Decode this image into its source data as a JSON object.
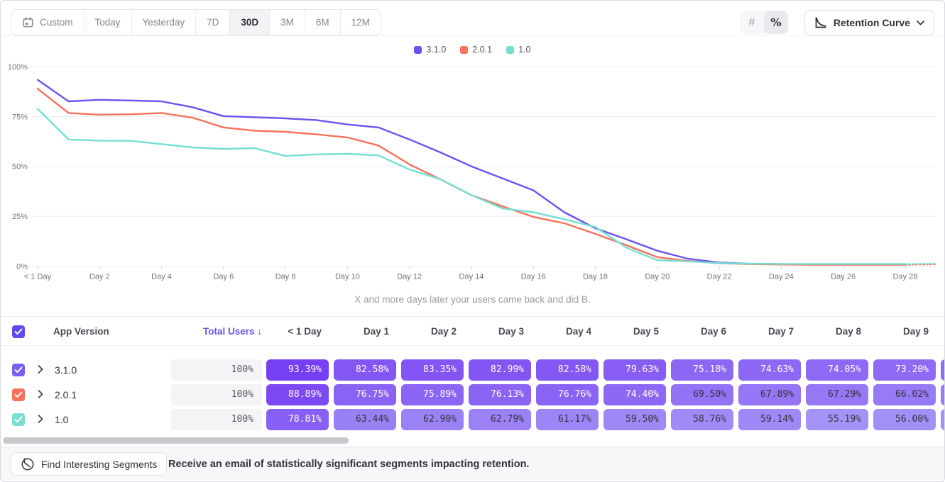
{
  "toolbar": {
    "date_ranges": [
      "Custom",
      "Today",
      "Yesterday",
      "7D",
      "30D",
      "3M",
      "6M",
      "12M"
    ],
    "active_range": "30D",
    "value_toggles": [
      "#",
      "%"
    ],
    "active_toggle": "%",
    "chart_type_label": "Retention Curve"
  },
  "legend": [
    {
      "label": "3.1.0",
      "color": "#6d53f2"
    },
    {
      "label": "2.0.1",
      "color": "#f8715a"
    },
    {
      "label": "1.0",
      "color": "#74dfd1"
    }
  ],
  "chart_data": {
    "type": "line",
    "caption": "X and more days later your users came back and did B.",
    "ylim": [
      0,
      100
    ],
    "y_ticks": [
      "0%",
      "25%",
      "50%",
      "75%",
      "100%"
    ],
    "x_tick_labels": [
      "< 1 Day",
      "Day 2",
      "Day 4",
      "Day 6",
      "Day 8",
      "Day 10",
      "Day 12",
      "Day 14",
      "Day 16",
      "Day 18",
      "Day 20",
      "Day 22",
      "Day 24",
      "Day 26",
      "Day 28"
    ],
    "x_tick_days": [
      0,
      2,
      4,
      6,
      8,
      10,
      12,
      14,
      16,
      18,
      20,
      22,
      24,
      26,
      28
    ],
    "grid": true,
    "legend_position": "top-center",
    "dashed_from_day": 28,
    "series": [
      {
        "name": "3.1.0",
        "color": "#6d53f2",
        "values": [
          93.39,
          82.58,
          83.35,
          82.99,
          82.58,
          79.63,
          75.18,
          74.63,
          74.05,
          73.2,
          71.0,
          69.5,
          63.5,
          57.0,
          50.0,
          44.0,
          38.0,
          27.0,
          19.0,
          13.5,
          7.7,
          3.7,
          1.8,
          1.2,
          1.0,
          0.9,
          0.9,
          0.9,
          0.9,
          1.2
        ]
      },
      {
        "name": "2.0.1",
        "color": "#f8715a",
        "values": [
          88.89,
          76.75,
          75.89,
          76.13,
          76.76,
          74.4,
          69.5,
          67.89,
          67.29,
          66.02,
          64.5,
          60.5,
          51.0,
          43.5,
          35.6,
          30.0,
          24.7,
          21.5,
          16.2,
          10.5,
          4.5,
          2.6,
          1.5,
          1.0,
          0.8,
          0.7,
          0.7,
          0.7,
          0.7,
          0.9
        ]
      },
      {
        "name": "1.0",
        "color": "#74dfd1",
        "values": [
          78.81,
          63.44,
          62.9,
          62.79,
          61.17,
          59.5,
          58.76,
          59.14,
          55.19,
          56.0,
          56.3,
          55.5,
          48.4,
          43.6,
          35.6,
          29.0,
          27.0,
          23.5,
          19.6,
          9.3,
          3.0,
          2.4,
          1.5,
          1.2,
          1.1,
          1.1,
          1.1,
          1.1,
          1.1,
          1.3
        ]
      }
    ]
  },
  "table": {
    "select_all_checked": true,
    "header": {
      "app_version": "App Version",
      "total_users": "Total Users",
      "sort_arrow": "↓",
      "day_columns": [
        "< 1 Day",
        "Day 1",
        "Day 2",
        "Day 3",
        "Day 4",
        "Day 5",
        "Day 6",
        "Day 7",
        "Day 8",
        "Day 9"
      ]
    },
    "rows": [
      {
        "name": "3.1.0",
        "checkbox_color": "#7a5ff5",
        "checked": true,
        "total": "100%",
        "values": [
          "93.39%",
          "82.58%",
          "83.35%",
          "82.99%",
          "82.58%",
          "79.63%",
          "75.18%",
          "74.63%",
          "74.05%",
          "73.20%"
        ]
      },
      {
        "name": "2.0.1",
        "checkbox_color": "#f8715a",
        "checked": true,
        "total": "100%",
        "values": [
          "88.89%",
          "76.75%",
          "75.89%",
          "76.13%",
          "76.76%",
          "74.40%",
          "69.50%",
          "67.89%",
          "67.29%",
          "66.02%"
        ]
      },
      {
        "name": "1.0",
        "checkbox_color": "#7adfd2",
        "checked": true,
        "total": "100%",
        "values": [
          "78.81%",
          "63.44%",
          "62.90%",
          "62.79%",
          "61.17%",
          "59.50%",
          "58.76%",
          "59.14%",
          "55.19%",
          "56.00%"
        ]
      }
    ]
  },
  "footer": {
    "button_label": "Find Interesting Segments",
    "message": "Receive an email of statistically significant segments impacting retention."
  },
  "colors": {
    "header_checkbox": "#5f4bef",
    "cell_low": "#a492f6",
    "cell_high": "#763ef3",
    "cell_dark_text": "#32323d",
    "axis_text": "#72727c",
    "gridline": "#ededf0"
  }
}
